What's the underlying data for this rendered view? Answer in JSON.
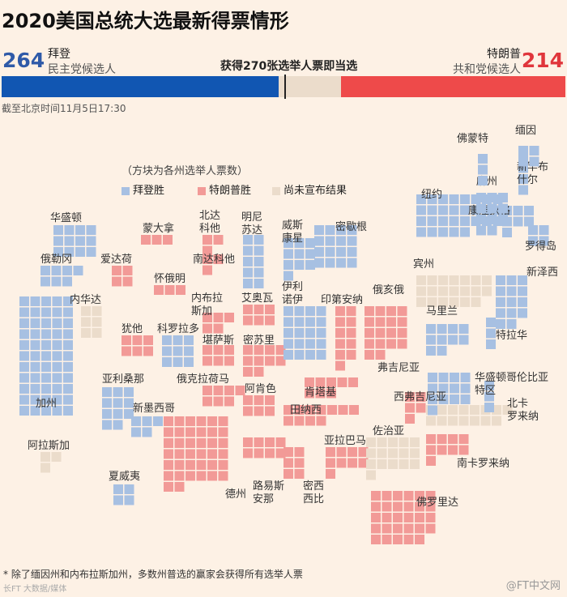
{
  "title": "2020美国总统大选最新得票情形",
  "biden": {
    "name": "拜登",
    "party": "民主党候选人",
    "votes": 264
  },
  "trump": {
    "name": "特朗普",
    "party": "共和党候选人",
    "votes": 214
  },
  "threshold_label": "获得270张选举人票即当选",
  "as_of": "截至北京时间11月5日17:30",
  "legend": {
    "note": "（方块为各州选举人票数）",
    "items": [
      {
        "label": "拜登胜",
        "color": "#a7c0e2"
      },
      {
        "label": "特朗普胜",
        "color": "#f29a97"
      },
      {
        "label": "尚未宣布结果",
        "color": "#ebdccb"
      }
    ]
  },
  "colors": {
    "dem_bar": "#1156b2",
    "rep_bar": "#ee4a4a",
    "undecided_bar": "#ebdccb",
    "dem_tile": "#a7c0e2",
    "rep_tile": "#f29a97",
    "undecided_tile": "#ebdccb"
  },
  "chart_data": {
    "type": "table",
    "total_electoral_votes": 538,
    "majority": 270,
    "states": [
      {
        "name": "华盛顿",
        "votes": 12,
        "result": "biden"
      },
      {
        "name": "俄勒冈",
        "votes": 7,
        "result": "biden"
      },
      {
        "name": "加州",
        "votes": 55,
        "result": "biden"
      },
      {
        "name": "内华达",
        "votes": 6,
        "result": "undecided"
      },
      {
        "name": "爱达荷",
        "votes": 4,
        "result": "trump"
      },
      {
        "name": "蒙大拿",
        "votes": 3,
        "result": "trump"
      },
      {
        "name": "怀俄明",
        "votes": 3,
        "result": "trump"
      },
      {
        "name": "犹他",
        "votes": 6,
        "result": "trump"
      },
      {
        "name": "科罗拉多",
        "votes": 9,
        "result": "biden"
      },
      {
        "name": "亚利桑那",
        "votes": 11,
        "result": "biden"
      },
      {
        "name": "新墨西哥",
        "votes": 5,
        "result": "biden"
      },
      {
        "name": "阿拉斯加",
        "votes": 3,
        "result": "undecided"
      },
      {
        "name": "夏威夷",
        "votes": 4,
        "result": "biden"
      },
      {
        "name": "北达科他",
        "votes": 3,
        "result": "trump"
      },
      {
        "name": "南达科他",
        "votes": 3,
        "result": "trump"
      },
      {
        "name": "内布拉斯加",
        "votes": 5,
        "result": "trump"
      },
      {
        "name": "堪萨斯",
        "votes": 6,
        "result": "trump"
      },
      {
        "name": "俄克拉荷马",
        "votes": 7,
        "result": "trump"
      },
      {
        "name": "德州",
        "votes": 38,
        "result": "trump"
      },
      {
        "name": "明尼苏达",
        "votes": 10,
        "result": "biden"
      },
      {
        "name": "艾奥瓦",
        "votes": 6,
        "result": "trump"
      },
      {
        "name": "密苏里",
        "votes": 10,
        "result": "trump"
      },
      {
        "name": "阿肯色",
        "votes": 6,
        "result": "trump"
      },
      {
        "name": "路易斯安那",
        "votes": 8,
        "result": "trump"
      },
      {
        "name": "威斯康星",
        "votes": 10,
        "result": "biden"
      },
      {
        "name": "伊利诺伊",
        "votes": 20,
        "result": "biden"
      },
      {
        "name": "密歇根",
        "votes": 16,
        "result": "biden"
      },
      {
        "name": "印第安纳",
        "votes": 11,
        "result": "trump"
      },
      {
        "name": "俄亥俄",
        "votes": 18,
        "result": "trump"
      },
      {
        "name": "肯塔基",
        "votes": 8,
        "result": "trump"
      },
      {
        "name": "田纳西",
        "votes": 11,
        "result": "trump"
      },
      {
        "name": "密西西比",
        "votes": 6,
        "result": "trump"
      },
      {
        "name": "亚拉巴马",
        "votes": 9,
        "result": "trump"
      },
      {
        "name": "佐治亚",
        "votes": 16,
        "result": "undecided"
      },
      {
        "name": "佛罗里达",
        "votes": 29,
        "result": "trump"
      },
      {
        "name": "南卡罗来纳",
        "votes": 9,
        "result": "trump"
      },
      {
        "name": "北卡罗来纳",
        "votes": 15,
        "result": "undecided"
      },
      {
        "name": "弗吉尼亚",
        "votes": 13,
        "result": "biden"
      },
      {
        "name": "西弗吉尼亚",
        "votes": 5,
        "result": "trump"
      },
      {
        "name": "宾州",
        "votes": 20,
        "result": "undecided"
      },
      {
        "name": "纽约",
        "votes": 29,
        "result": "biden"
      },
      {
        "name": "马里兰",
        "votes": 10,
        "result": "biden"
      },
      {
        "name": "特拉华",
        "votes": 3,
        "result": "biden"
      },
      {
        "name": "华盛顿哥伦比亚特区",
        "votes": 3,
        "result": "biden"
      },
      {
        "name": "新泽西",
        "votes": 14,
        "result": "biden"
      },
      {
        "name": "康涅狄格",
        "votes": 7,
        "result": "biden"
      },
      {
        "name": "罗得岛",
        "votes": 4,
        "result": "biden"
      },
      {
        "name": "麻州",
        "votes": 11,
        "result": "biden"
      },
      {
        "name": "佛蒙特",
        "votes": 3,
        "result": "biden"
      },
      {
        "name": "新罕布什尔",
        "votes": 4,
        "result": "biden"
      },
      {
        "name": "缅因",
        "votes": 4,
        "result": "biden"
      }
    ]
  },
  "footnote": "* 除了缅因州和内布拉斯加州，多数州普选的赢家会获得所有选举人票",
  "credit": "长FT 大数据/媒体",
  "source": "@FT中文网"
}
